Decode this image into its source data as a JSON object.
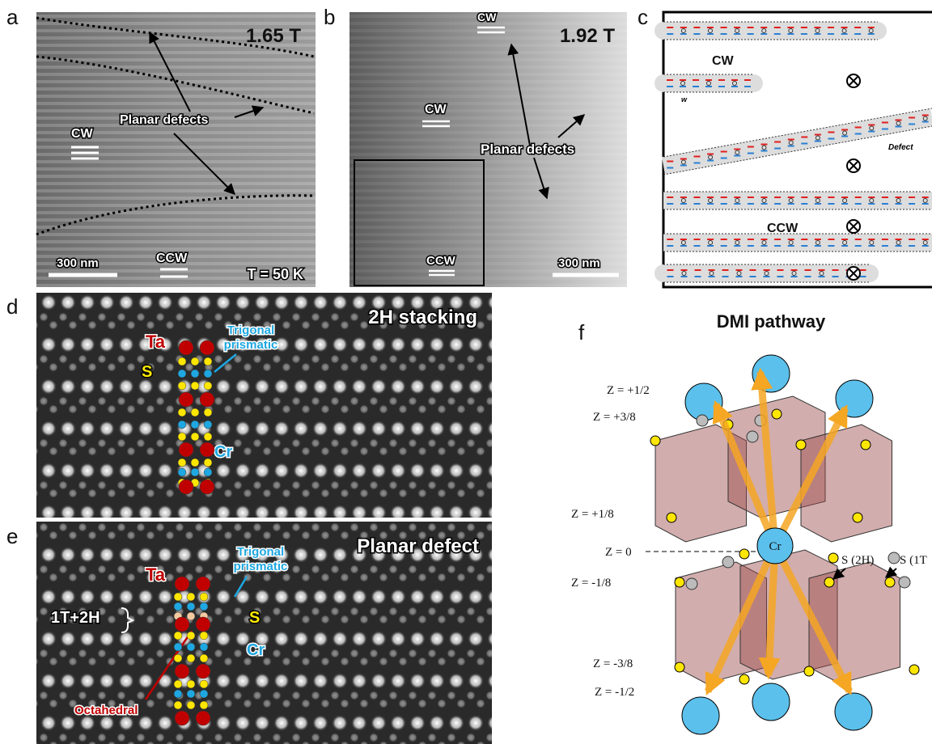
{
  "panels": {
    "a": {
      "label": "a",
      "field": "1.65 T",
      "annotation": "Planar defects",
      "cw": "CW",
      "ccw": "CCW",
      "scale_bar": "300 nm",
      "temperature": "T = 50 K"
    },
    "b": {
      "label": "b",
      "field": "1.92 T",
      "cw_top": "CW",
      "cw": "CW",
      "annotation": "Planar defects",
      "ccw": "CCW",
      "scale_bar": "300 nm"
    },
    "c": {
      "label": "c",
      "cw": "CW",
      "width": "w",
      "defect": "Defect",
      "ccw": "CCW"
    },
    "d": {
      "label": "d",
      "title": "2H stacking",
      "ta": "Ta",
      "s": "S",
      "cr": "Cr",
      "trigonal": [
        "Trigonal",
        "prismatic"
      ]
    },
    "e": {
      "label": "e",
      "title": "Planar defect",
      "trigonal": [
        "Trigonal",
        "prismatic"
      ],
      "ta": "Ta",
      "stack": "1T+2H",
      "s": "S",
      "cr": "Cr",
      "octahedral": "Octahedral"
    },
    "f": {
      "label": "f",
      "title": "DMI pathway",
      "z_levels": [
        "Z = +1/2",
        "Z = +3/8",
        "Z = +1/8",
        "Z = 0",
        "Z = -1/8",
        "Z = -3/8",
        "Z = -1/2"
      ],
      "cr": "Cr",
      "s_2h": "S (2H)",
      "s_1t": "S (1T"
    }
  }
}
